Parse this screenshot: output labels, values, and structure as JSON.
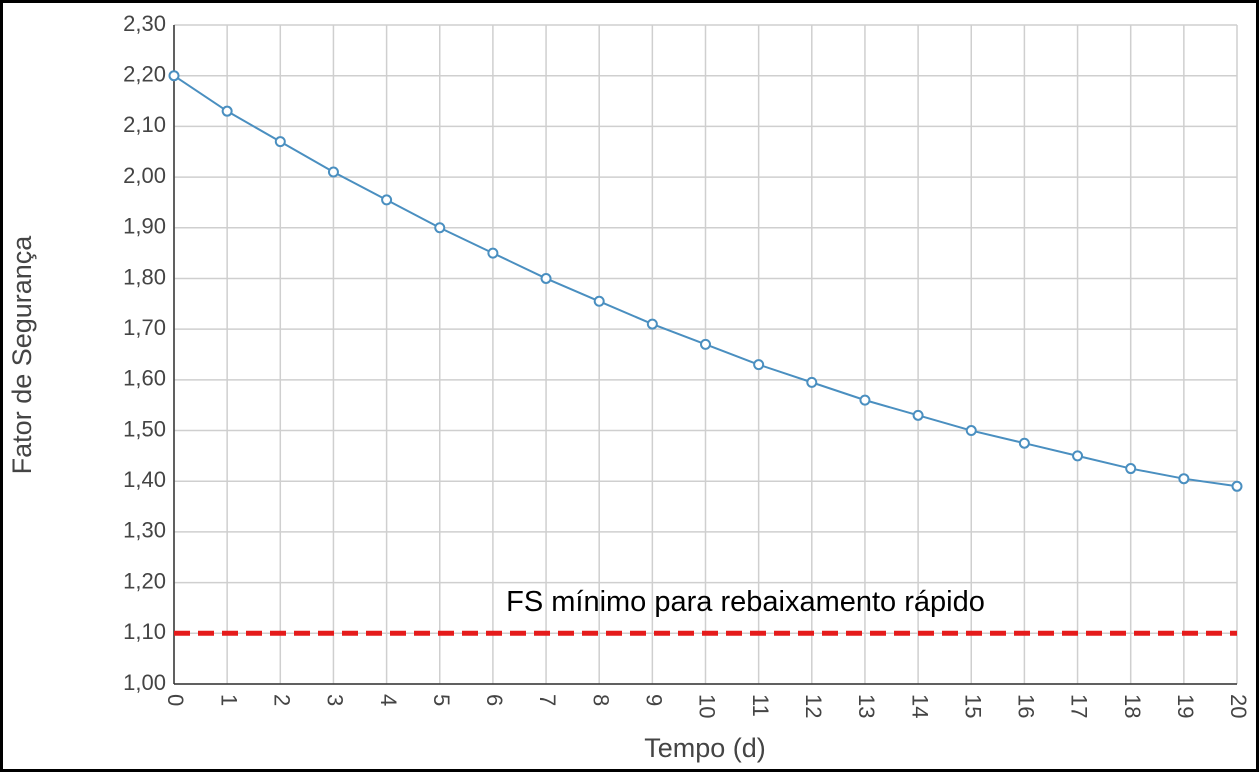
{
  "chart_data": {
    "type": "line",
    "x_label": "Tempo (d)",
    "y_label": "Fator de Segurança",
    "x": [
      0,
      1,
      2,
      3,
      4,
      5,
      6,
      7,
      8,
      9,
      10,
      11,
      12,
      13,
      14,
      15,
      16,
      17,
      18,
      19,
      20
    ],
    "series": [
      {
        "color": "#4a8fc0",
        "values": [
          2.2,
          2.13,
          2.07,
          2.01,
          1.955,
          1.9,
          1.85,
          1.8,
          1.755,
          1.71,
          1.67,
          1.63,
          1.595,
          1.56,
          1.53,
          1.5,
          1.475,
          1.45,
          1.425,
          1.405,
          1.39
        ]
      }
    ],
    "xlim": [
      0,
      20
    ],
    "xticks": [
      0,
      1,
      2,
      3,
      4,
      5,
      6,
      7,
      8,
      9,
      10,
      11,
      12,
      13,
      14,
      15,
      16,
      17,
      18,
      19,
      20
    ],
    "ylim": [
      1.0,
      2.3
    ],
    "yticks": [
      {
        "value": 1.0,
        "label": "1,00"
      },
      {
        "value": 1.1,
        "label": "1,10"
      },
      {
        "value": 1.2,
        "label": "1,20"
      },
      {
        "value": 1.3,
        "label": "1,30"
      },
      {
        "value": 1.4,
        "label": "1,40"
      },
      {
        "value": 1.5,
        "label": "1,50"
      },
      {
        "value": 1.6,
        "label": "1,60"
      },
      {
        "value": 1.7,
        "label": "1,70"
      },
      {
        "value": 1.8,
        "label": "1,80"
      },
      {
        "value": 1.9,
        "label": "1,90"
      },
      {
        "value": 2.0,
        "label": "2,00"
      },
      {
        "value": 2.1,
        "label": "2,10"
      },
      {
        "value": 2.2,
        "label": "2,20"
      },
      {
        "value": 2.3,
        "label": "2,30"
      }
    ],
    "grid": true,
    "reference_line": {
      "value": 1.1,
      "label": "FS mínimo para rebaixamento rápido",
      "color": "#e51b1b"
    }
  }
}
